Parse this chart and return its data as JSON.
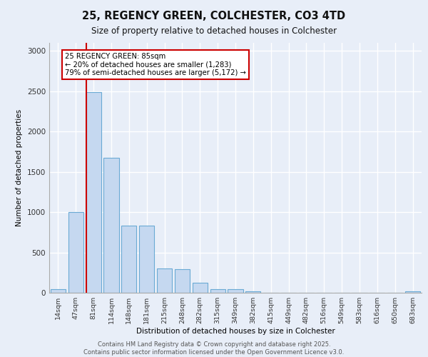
{
  "title_line1": "25, REGENCY GREEN, COLCHESTER, CO3 4TD",
  "title_line2": "Size of property relative to detached houses in Colchester",
  "xlabel": "Distribution of detached houses by size in Colchester",
  "ylabel": "Number of detached properties",
  "categories": [
    "14sqm",
    "47sqm",
    "81sqm",
    "114sqm",
    "148sqm",
    "181sqm",
    "215sqm",
    "248sqm",
    "282sqm",
    "315sqm",
    "349sqm",
    "382sqm",
    "415sqm",
    "449sqm",
    "482sqm",
    "516sqm",
    "549sqm",
    "583sqm",
    "616sqm",
    "650sqm",
    "683sqm"
  ],
  "values": [
    45,
    1005,
    2490,
    1670,
    835,
    835,
    300,
    295,
    120,
    45,
    45,
    20,
    0,
    0,
    0,
    0,
    0,
    0,
    0,
    0,
    20
  ],
  "bar_color": "#c5d8f0",
  "bar_edge_color": "#6aaad4",
  "property_marker_index": 2,
  "property_label": "25 REGENCY GREEN: 85sqm",
  "annotation_line2": "← 20% of detached houses are smaller (1,283)",
  "annotation_line3": "79% of semi-detached houses are larger (5,172) →",
  "marker_color": "#cc0000",
  "ylim": [
    0,
    3100
  ],
  "yticks": [
    0,
    500,
    1000,
    1500,
    2000,
    2500,
    3000
  ],
  "background_color": "#e8eef8",
  "grid_color": "#ffffff",
  "footer_line1": "Contains HM Land Registry data © Crown copyright and database right 2025.",
  "footer_line2": "Contains public sector information licensed under the Open Government Licence v3.0."
}
